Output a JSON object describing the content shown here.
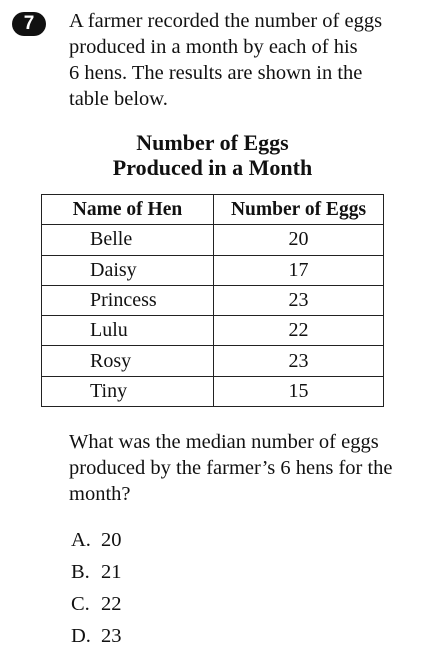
{
  "question_number": "7",
  "stem_lines": [
    "A farmer recorded the number of eggs",
    "produced in a month by each of his",
    "6 hens. The results are shown in the",
    "table below."
  ],
  "table": {
    "title_lines": [
      "Number of Eggs",
      "Produced in a Month"
    ],
    "headers": [
      "Name of Hen",
      "Number of Eggs"
    ],
    "rows": [
      [
        "Belle",
        "20"
      ],
      [
        "Daisy",
        "17"
      ],
      [
        "Princess",
        "23"
      ],
      [
        "Lulu",
        "22"
      ],
      [
        "Rosy",
        "23"
      ],
      [
        "Tiny",
        "15"
      ]
    ]
  },
  "question_lines": [
    "What was the median number of eggs",
    "produced by the farmer’s 6 hens for the",
    "month?"
  ],
  "choices": [
    {
      "letter": "A.",
      "text": "20"
    },
    {
      "letter": "B.",
      "text": "21"
    },
    {
      "letter": "C.",
      "text": "22"
    },
    {
      "letter": "D.",
      "text": "23"
    }
  ]
}
